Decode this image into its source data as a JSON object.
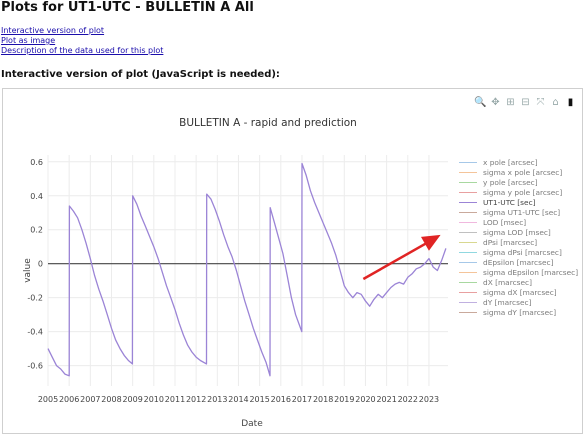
{
  "page": {
    "title": "Plots for UT1-UTC - BULLETIN A All",
    "links": [
      "Interactive version of plot",
      "Plot as image",
      "Description of the data used for this plot"
    ],
    "section_title": "Interactive version of plot (JavaScript is needed):"
  },
  "modebar": [
    {
      "name": "zoom-icon",
      "glyph": "🔍"
    },
    {
      "name": "pan-icon",
      "glyph": "✥"
    },
    {
      "name": "zoom-in-icon",
      "glyph": "⊞"
    },
    {
      "name": "zoom-out-icon",
      "glyph": "⊟"
    },
    {
      "name": "autoscale-icon",
      "glyph": "⤧"
    },
    {
      "name": "home-icon",
      "glyph": "⌂"
    },
    {
      "name": "plotly-logo-icon",
      "glyph": "▮"
    }
  ],
  "colors": {
    "ut1_line": "#9b84d6",
    "zero_line": "#444444",
    "grid": "#ececec",
    "annotation_arrow": "#e02424"
  },
  "chart_data": {
    "type": "line",
    "title": "BULLETIN A  - rapid and prediction",
    "xlabel": "Date",
    "ylabel": "value",
    "xlim": [
      2005.0,
      2023.9
    ],
    "ylim": [
      -0.72,
      0.64
    ],
    "x_ticks": [
      2005,
      2006,
      2007,
      2008,
      2009,
      2010,
      2011,
      2012,
      2013,
      2014,
      2015,
      2016,
      2017,
      2018,
      2019,
      2020,
      2021,
      2022,
      2023
    ],
    "y_ticks": [
      0.6,
      0.4,
      0.2,
      0,
      -0.2,
      -0.4,
      -0.6
    ],
    "grid": true,
    "legend_position": "right",
    "legend": [
      {
        "name": "x pole [arcsec]",
        "color": "#a6c8e8"
      },
      {
        "name": "sigma x pole [arcsec]",
        "color": "#f4c49a"
      },
      {
        "name": "y pole [arcsec]",
        "color": "#a8d8a0"
      },
      {
        "name": "sigma y pole [arcsec]",
        "color": "#e8a0a0"
      },
      {
        "name": "UT1-UTC [sec]",
        "color": "#9b84d6",
        "active": true
      },
      {
        "name": "sigma UT1-UTC [sec]",
        "color": "#c9a99c"
      },
      {
        "name": "LOD [msec]",
        "color": "#f0b8de"
      },
      {
        "name": "sigma LOD [msec]",
        "color": "#c0c0c0"
      },
      {
        "name": "dPsi [marcsec]",
        "color": "#d8d890"
      },
      {
        "name": "sigma dPsi [marcsec]",
        "color": "#90d8e0"
      },
      {
        "name": "dEpsilon [marcsec]",
        "color": "#a6c8e8"
      },
      {
        "name": "sigma dEpsilon [marcsec]",
        "color": "#f4c49a"
      },
      {
        "name": "dX [marcsec]",
        "color": "#a8d8a0"
      },
      {
        "name": "sigma dX [marcsec]",
        "color": "#e8a0a0"
      },
      {
        "name": "dY [marcsec]",
        "color": "#c0b0e0"
      },
      {
        "name": "sigma dY [marcsec]",
        "color": "#c9a99c"
      }
    ],
    "series": [
      {
        "name": "UT1-UTC [sec]",
        "x": [
          2005.0,
          2005.2,
          2005.4,
          2005.6,
          2005.8,
          2006.0,
          2006.01,
          2006.2,
          2006.4,
          2006.6,
          2006.8,
          2007.0,
          2007.2,
          2007.4,
          2007.6,
          2007.8,
          2008.0,
          2008.2,
          2008.4,
          2008.6,
          2008.8,
          2008.99,
          2009.0,
          2009.2,
          2009.4,
          2009.6,
          2009.8,
          2010.0,
          2010.2,
          2010.4,
          2010.6,
          2010.8,
          2011.0,
          2011.2,
          2011.4,
          2011.6,
          2011.8,
          2012.0,
          2012.2,
          2012.49,
          2012.5,
          2012.7,
          2012.9,
          2013.1,
          2013.3,
          2013.5,
          2013.7,
          2013.9,
          2014.1,
          2014.3,
          2014.5,
          2014.7,
          2014.9,
          2015.1,
          2015.3,
          2015.49,
          2015.5,
          2015.7,
          2015.9,
          2016.1,
          2016.3,
          2016.5,
          2016.7,
          2016.99,
          2017.0,
          2017.2,
          2017.4,
          2017.6,
          2017.8,
          2018.0,
          2018.2,
          2018.4,
          2018.6,
          2018.8,
          2019.0,
          2019.2,
          2019.4,
          2019.6,
          2019.8,
          2020.0,
          2020.2,
          2020.4,
          2020.6,
          2020.8,
          2021.0,
          2021.2,
          2021.4,
          2021.6,
          2021.8,
          2022.0,
          2022.2,
          2022.4,
          2022.6,
          2022.8,
          2023.0,
          2023.2,
          2023.4,
          2023.6,
          2023.8
        ],
        "y": [
          -0.5,
          -0.55,
          -0.6,
          -0.62,
          -0.65,
          -0.66,
          0.34,
          0.31,
          0.27,
          0.2,
          0.12,
          0.03,
          -0.07,
          -0.15,
          -0.22,
          -0.3,
          -0.38,
          -0.45,
          -0.5,
          -0.54,
          -0.57,
          -0.59,
          0.4,
          0.35,
          0.28,
          0.22,
          0.16,
          0.1,
          0.03,
          -0.05,
          -0.13,
          -0.2,
          -0.27,
          -0.35,
          -0.42,
          -0.48,
          -0.52,
          -0.55,
          -0.57,
          -0.59,
          0.41,
          0.38,
          0.32,
          0.25,
          0.17,
          0.1,
          0.04,
          -0.04,
          -0.13,
          -0.22,
          -0.3,
          -0.38,
          -0.45,
          -0.52,
          -0.58,
          -0.66,
          0.33,
          0.24,
          0.15,
          0.06,
          -0.07,
          -0.2,
          -0.3,
          -0.4,
          0.59,
          0.52,
          0.43,
          0.36,
          0.3,
          0.24,
          0.18,
          0.12,
          0.05,
          -0.04,
          -0.13,
          -0.17,
          -0.2,
          -0.17,
          -0.18,
          -0.22,
          -0.25,
          -0.21,
          -0.18,
          -0.2,
          -0.17,
          -0.14,
          -0.12,
          -0.11,
          -0.12,
          -0.08,
          -0.06,
          -0.03,
          -0.02,
          0.0,
          0.03,
          -0.02,
          -0.04,
          0.02,
          0.09
        ]
      }
    ],
    "annotation_arrow": {
      "x_from": 2019.9,
      "y_from": -0.09,
      "x_to": 2023.55,
      "y_to": 0.17
    }
  }
}
